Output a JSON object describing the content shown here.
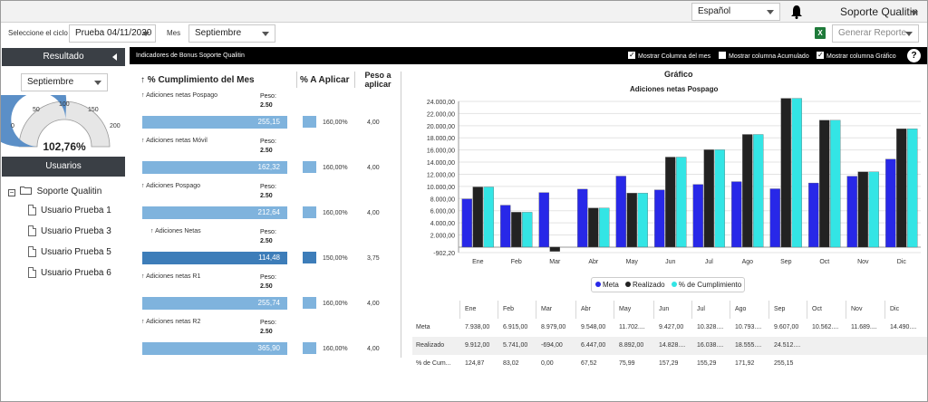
{
  "topbar": {
    "language": "Español",
    "user": "Soporte Qualitin"
  },
  "filters": {
    "cycle_label": "Seleccione el ciclo",
    "cycle_value": "Prueba 04/11/2020",
    "month_label": "Mes",
    "month_value": "Septiembre",
    "report_placeholder": "Generar Reporte"
  },
  "left_panel": {
    "result_title": "Resultado",
    "month_select": "Septiembre",
    "gauge": {
      "ticks": [
        "0",
        "50",
        "100",
        "150",
        "200"
      ],
      "value": 102.76,
      "value_label": "102,76%",
      "max": 200
    },
    "users_title": "Usuarios",
    "tree_root": "Soporte Qualitin",
    "users": [
      "Usuario Prueba 1",
      "Usuario Prueba 3",
      "Usuario Prueba 5",
      "Usuario Prueba 6"
    ]
  },
  "indicators": {
    "title": "Indicadores de Bonus  Soporte Qualitin",
    "chk_month": "Mostrar Columna del mes",
    "chk_accum": "Mostrar columna Acumulado",
    "chk_chart": "Mostrar columna Gráfico",
    "help": "?",
    "col_cumplimiento": "% Cumplimiento del Mes",
    "col_aplicar": "% A Aplicar",
    "col_peso": "Peso a aplicar",
    "peso_label": "Peso:",
    "rows": [
      {
        "label": "Adiciones netas Pospago",
        "peso": "2.50",
        "value": "255,15",
        "aplicar": "160,00%",
        "peso_aplicar": "4,00",
        "dark": false
      },
      {
        "label": "Adiciones netas  Móvil",
        "peso": "2.50",
        "value": "162,32",
        "aplicar": "160,00%",
        "peso_aplicar": "4,00",
        "dark": false
      },
      {
        "label": "Adiciones  Pospago",
        "peso": "2.50",
        "value": "212,64",
        "aplicar": "160,00%",
        "peso_aplicar": "4,00",
        "dark": false
      },
      {
        "label": "Adiciones Netas",
        "peso": "2.50",
        "value": "114,48",
        "aplicar": "150,00%",
        "peso_aplicar": "3,75",
        "dark": true
      },
      {
        "label": "Adiciones netas R1",
        "peso": "2.50",
        "value": "255,74",
        "aplicar": "160,00%",
        "peso_aplicar": "4,00",
        "dark": false
      },
      {
        "label": "Adiciones netas  R2",
        "peso": "2.50",
        "value": "365,90",
        "aplicar": "160,00%",
        "peso_aplicar": "4,00",
        "dark": false
      }
    ]
  },
  "chart_data": {
    "type": "bar",
    "title": "Gráfico",
    "subtitle": "Adiciones netas Pospago",
    "categories": [
      "Ene",
      "Feb",
      "Mar",
      "Abr",
      "May",
      "Jun",
      "Jul",
      "Ago",
      "Sep",
      "Oct",
      "Nov",
      "Dic"
    ],
    "series": [
      {
        "name": "Meta",
        "color": "#2828e8",
        "values": [
          7938,
          6915,
          8979,
          9548,
          11702,
          9427,
          10328,
          10793,
          9607,
          10562,
          11689,
          14490
        ]
      },
      {
        "name": "Realizado",
        "color": "#222222",
        "values": [
          9912,
          5741,
          -694,
          6447,
          8892,
          14828,
          16038,
          18555,
          24512,
          20900,
          12400,
          19500
        ]
      },
      {
        "name": "% de Cumplimiento",
        "color": "#33e5e5",
        "values": [
          9912,
          5741,
          null,
          6447,
          8892,
          14828,
          16038,
          18555,
          24512,
          20900,
          12400,
          19500
        ]
      }
    ],
    "y_ticks": [
      "24.000,00",
      "22.000,00",
      "20.000,00",
      "18.000,00",
      "16.000,00",
      "14.000,00",
      "12.000,00",
      "10.000,00",
      "8.000,00",
      "6.000,00",
      "4.000,00",
      "2.000,00",
      "-902,20"
    ],
    "ylim": [
      -902.2,
      24000
    ]
  },
  "data_table": {
    "headers": [
      "Ene",
      "Feb",
      "Mar",
      "Abr",
      "May",
      "Jun",
      "Jul",
      "Ago",
      "Sep",
      "Oct",
      "Nov",
      "Dic"
    ],
    "rows": [
      {
        "label": "Meta",
        "values": [
          "7.938,00",
          "6.915,00",
          "8.979,00",
          "9.548,00",
          "11.702....",
          "9.427,00",
          "10.328....",
          "10.793....",
          "9.607,00",
          "10.562....",
          "11.689....",
          "14.490...."
        ]
      },
      {
        "label": "Realizado",
        "values": [
          "9.912,00",
          "5.741,00",
          "-694,00",
          "6.447,00",
          "8.892,00",
          "14.828....",
          "16.038....",
          "18.555....",
          "24.512....",
          "",
          "",
          ""
        ]
      },
      {
        "label": "% de Cum...",
        "values": [
          "124,87",
          "83,02",
          "0,00",
          "67,52",
          "75,99",
          "157,29",
          "155,29",
          "171,92",
          "255,15",
          "",
          "",
          ""
        ]
      }
    ]
  }
}
